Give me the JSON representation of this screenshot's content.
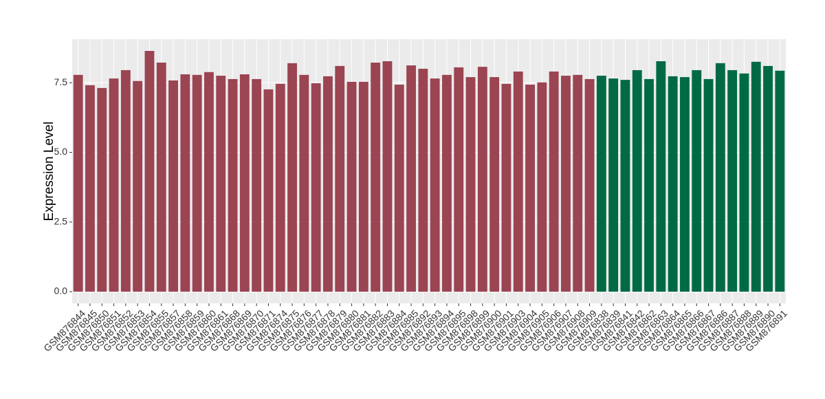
{
  "chart_data": {
    "type": "bar",
    "y_label": "Expression Level",
    "categories": [
      "GSM876844",
      "GSM876845",
      "GSM876850",
      "GSM876851",
      "GSM876852",
      "GSM876853",
      "GSM876854",
      "GSM876855",
      "GSM876857",
      "GSM876858",
      "GSM876859",
      "GSM876860",
      "GSM876861",
      "GSM876868",
      "GSM876869",
      "GSM876870",
      "GSM876871",
      "GSM876874",
      "GSM876875",
      "GSM876876",
      "GSM876877",
      "GSM876878",
      "GSM876879",
      "GSM876880",
      "GSM876881",
      "GSM876882",
      "GSM876883",
      "GSM876884",
      "GSM876885",
      "GSM876892",
      "GSM876893",
      "GSM876894",
      "GSM876895",
      "GSM876898",
      "GSM876899",
      "GSM876900",
      "GSM876901",
      "GSM876903",
      "GSM876904",
      "GSM876905",
      "GSM876906",
      "GSM876907",
      "GSM876908",
      "GSM876909",
      "GSM876838",
      "GSM876839",
      "GSM876841",
      "GSM876842",
      "GSM876862",
      "GSM876863",
      "GSM876864",
      "GSM876865",
      "GSM876866",
      "GSM876867",
      "GSM876886",
      "GSM876887",
      "GSM876888",
      "GSM876889",
      "GSM876890",
      "GSM876891"
    ],
    "values": [
      7.78,
      7.41,
      7.31,
      7.65,
      7.95,
      7.56,
      8.64,
      8.22,
      7.58,
      7.8,
      7.78,
      7.88,
      7.75,
      7.63,
      7.8,
      7.63,
      7.26,
      7.46,
      8.2,
      7.78,
      7.48,
      7.73,
      8.1,
      7.53,
      7.53,
      8.22,
      8.27,
      7.43,
      8.12,
      8.0,
      7.65,
      7.78,
      8.05,
      7.7,
      8.07,
      7.7,
      7.46,
      7.9,
      7.43,
      7.51,
      7.9,
      7.75,
      7.78,
      7.63,
      7.75,
      7.65,
      7.6,
      7.95,
      7.63,
      8.27,
      7.73,
      7.7,
      7.95,
      7.63,
      8.2,
      7.95,
      7.83,
      8.25,
      8.1,
      7.93
    ],
    "colors": [
      "#9b4452",
      "#9b4452",
      "#9b4452",
      "#9b4452",
      "#9b4452",
      "#9b4452",
      "#9b4452",
      "#9b4452",
      "#9b4452",
      "#9b4452",
      "#9b4452",
      "#9b4452",
      "#9b4452",
      "#9b4452",
      "#9b4452",
      "#9b4452",
      "#9b4452",
      "#9b4452",
      "#9b4452",
      "#9b4452",
      "#9b4452",
      "#9b4452",
      "#9b4452",
      "#9b4452",
      "#9b4452",
      "#9b4452",
      "#9b4452",
      "#9b4452",
      "#9b4452",
      "#9b4452",
      "#9b4452",
      "#9b4452",
      "#9b4452",
      "#9b4452",
      "#9b4452",
      "#9b4452",
      "#9b4452",
      "#9b4452",
      "#9b4452",
      "#9b4452",
      "#9b4452",
      "#9b4452",
      "#9b4452",
      "#9b4452",
      "#006a45",
      "#006a45",
      "#006a45",
      "#006a45",
      "#006a45",
      "#006a45",
      "#006a45",
      "#006a45",
      "#006a45",
      "#006a45",
      "#006a45",
      "#006a45",
      "#006a45",
      "#006a45",
      "#006a45",
      "#006a45"
    ],
    "ylim": [
      -0.42,
      9.06
    ],
    "yticks": [
      {
        "value": 0,
        "label": "0.0"
      },
      {
        "value": 2.5,
        "label": "2.5"
      },
      {
        "value": 5,
        "label": "5.0"
      },
      {
        "value": 7.5,
        "label": "7.5"
      }
    ],
    "grid": true
  }
}
